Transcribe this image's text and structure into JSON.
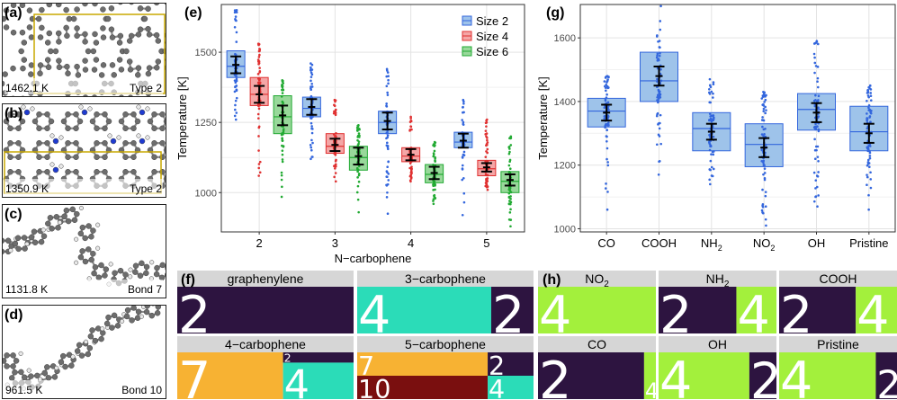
{
  "colors": {
    "blue": "#3366dd",
    "blue_fill": "#9ec3ea",
    "red": "#e03030",
    "red_fill": "#f4a6a6",
    "green": "#22aa33",
    "green_fill": "#98d89a",
    "dark": "#2d1440",
    "teal": "#2bdcb8",
    "orange": "#f7b233",
    "maroon": "#7a0f0f",
    "lime": "#a3f03c",
    "gold": "#c8a800"
  },
  "structures": [
    {
      "label": "(a)",
      "temp": "1462.1 K",
      "tag": "Type 2",
      "kind": "rings"
    },
    {
      "label": "(b)",
      "temp": "1350.9 K",
      "tag": "Type 2",
      "kind": "nitro"
    },
    {
      "label": "(c)",
      "temp": "1131.8 K",
      "tag": "Bond 7",
      "kind": "chain1"
    },
    {
      "label": "(d)",
      "temp": "961.5 K",
      "tag": "Bond 10",
      "kind": "chain2"
    }
  ],
  "chart_data": [
    {
      "panel": "(e)",
      "type": "box",
      "xlabel": "N−carbophene",
      "ylabel": "Temperature [K]",
      "categories": [
        "2",
        "3",
        "4",
        "5"
      ],
      "yticks": [
        1000,
        1250,
        1500
      ],
      "ylim": [
        860,
        1670
      ],
      "legend_position": "top-right",
      "series": [
        {
          "name": "Size 2",
          "color_key": "blue",
          "boxes": [
            {
              "q1": 1410,
              "median": 1450,
              "q3": 1505,
              "mean": 1455,
              "ci": 30,
              "min": 1260,
              "max": 1650
            },
            {
              "q1": 1270,
              "median": 1300,
              "q3": 1340,
              "mean": 1305,
              "ci": 28,
              "min": 1120,
              "max": 1460
            },
            {
              "q1": 1210,
              "median": 1250,
              "q3": 1290,
              "mean": 1255,
              "ci": 30,
              "min": 925,
              "max": 1440
            },
            {
              "q1": 1160,
              "median": 1180,
              "q3": 1215,
              "mean": 1185,
              "ci": 25,
              "min": 920,
              "max": 1330
            }
          ]
        },
        {
          "name": "Size 4",
          "color_key": "red",
          "boxes": [
            {
              "q1": 1310,
              "median": 1350,
              "q3": 1410,
              "mean": 1350,
              "ci": 30,
              "min": 1060,
              "max": 1530
            },
            {
              "q1": 1140,
              "median": 1165,
              "q3": 1210,
              "mean": 1170,
              "ci": 22,
              "min": 1040,
              "max": 1330
            },
            {
              "q1": 1110,
              "median": 1130,
              "q3": 1160,
              "mean": 1135,
              "ci": 20,
              "min": 1040,
              "max": 1270
            },
            {
              "q1": 1060,
              "median": 1085,
              "q3": 1115,
              "mean": 1090,
              "ci": 15,
              "min": 1010,
              "max": 1260
            }
          ]
        },
        {
          "name": "Size 6",
          "color_key": "green",
          "boxes": [
            {
              "q1": 1210,
              "median": 1270,
              "q3": 1345,
              "mean": 1275,
              "ci": 35,
              "min": 985,
              "max": 1400
            },
            {
              "q1": 1080,
              "median": 1125,
              "q3": 1165,
              "mean": 1130,
              "ci": 30,
              "min": 930,
              "max": 1240
            },
            {
              "q1": 1035,
              "median": 1065,
              "q3": 1100,
              "mean": 1070,
              "ci": 22,
              "min": 960,
              "max": 1180
            },
            {
              "q1": 1000,
              "median": 1040,
              "q3": 1075,
              "mean": 1045,
              "ci": 20,
              "min": 880,
              "max": 1200
            }
          ]
        }
      ]
    },
    {
      "panel": "(g)",
      "type": "box",
      "xlabel": "",
      "ylabel": "Temperature [K]",
      "categories": [
        "CO",
        "COOH",
        "NH2",
        "NO2",
        "OH",
        "Pristine"
      ],
      "tick_labels": [
        {
          "text": "CO",
          "sub": ""
        },
        {
          "text": "COOH",
          "sub": ""
        },
        {
          "text": "NH",
          "sub": "2"
        },
        {
          "text": "NO",
          "sub": "2"
        },
        {
          "text": "OH",
          "sub": ""
        },
        {
          "text": "Pristine",
          "sub": ""
        }
      ],
      "yticks": [
        1000,
        1200,
        1400,
        1600
      ],
      "ylim": [
        990,
        1705
      ],
      "boxes": [
        {
          "q1": 1320,
          "median": 1370,
          "q3": 1410,
          "mean": 1365,
          "ci": 25,
          "min": 1060,
          "max": 1480
        },
        {
          "q1": 1400,
          "median": 1465,
          "q3": 1555,
          "mean": 1480,
          "ci": 30,
          "min": 1170,
          "max": 1700
        },
        {
          "q1": 1245,
          "median": 1315,
          "q3": 1365,
          "mean": 1305,
          "ci": 25,
          "min": 1140,
          "max": 1470
        },
        {
          "q1": 1195,
          "median": 1265,
          "q3": 1330,
          "mean": 1255,
          "ci": 30,
          "min": 1010,
          "max": 1430
        },
        {
          "q1": 1310,
          "median": 1375,
          "q3": 1425,
          "mean": 1365,
          "ci": 30,
          "min": 1070,
          "max": 1590
        },
        {
          "q1": 1245,
          "median": 1305,
          "q3": 1385,
          "mean": 1300,
          "ci": 30,
          "min": 1060,
          "max": 1450
        }
      ]
    }
  ],
  "treemaps_f": {
    "label": "(f)",
    "panels": [
      {
        "title": "graphenylene",
        "tiles": [
          {
            "text": "2",
            "color_key": "dark",
            "share": 1.0
          }
        ]
      },
      {
        "title": "3−carbophene",
        "tiles": [
          {
            "text": "4",
            "color_key": "teal",
            "share": 0.76
          },
          {
            "text": "2",
            "color_key": "dark",
            "share": 0.24
          }
        ]
      },
      {
        "title": "4−carbophene",
        "tiles": [
          {
            "text": "7",
            "color_key": "orange",
            "share": 0.6
          },
          {
            "text": "2",
            "color_key": "dark",
            "share": 0.1
          },
          {
            "text": "4",
            "color_key": "teal",
            "share": 0.3
          }
        ]
      },
      {
        "title": "5−carbophene",
        "tiles": [
          {
            "text": "7",
            "color_key": "orange",
            "share": 0.37
          },
          {
            "text": "2",
            "color_key": "dark",
            "share": 0.13
          },
          {
            "text": "10",
            "color_key": "maroon",
            "share": 0.37
          },
          {
            "text": "4",
            "color_key": "teal",
            "share": 0.13
          }
        ]
      }
    ]
  },
  "treemaps_h": {
    "label": "(h)",
    "panels": [
      {
        "title": "NO",
        "sub": "2",
        "tiles": [
          {
            "text": "4",
            "color_key": "lime",
            "share": 1.0
          }
        ]
      },
      {
        "title": "NH",
        "sub": "2",
        "tiles": [
          {
            "text": "2",
            "color_key": "dark",
            "share": 0.66
          },
          {
            "text": "4",
            "color_key": "lime",
            "share": 0.34
          }
        ]
      },
      {
        "title": "COOH",
        "sub": "",
        "tiles": [
          {
            "text": "2",
            "color_key": "dark",
            "share": 0.65
          },
          {
            "text": "4",
            "color_key": "lime",
            "share": 0.35
          }
        ]
      },
      {
        "title": "CO",
        "sub": "",
        "tiles": [
          {
            "text": "2",
            "color_key": "dark",
            "share": 0.9
          },
          {
            "text": "4",
            "color_key": "lime",
            "share": 0.1
          }
        ]
      },
      {
        "title": "OH",
        "sub": "",
        "tiles": [
          {
            "text": "4",
            "color_key": "lime",
            "share": 0.77
          },
          {
            "text": "2",
            "color_key": "dark",
            "share": 0.23
          }
        ]
      },
      {
        "title": "Pristine",
        "sub": "",
        "tiles": [
          {
            "text": "4",
            "color_key": "lime",
            "share": 0.82
          },
          {
            "text": "2",
            "color_key": "dark",
            "share": 0.18
          }
        ]
      }
    ]
  }
}
